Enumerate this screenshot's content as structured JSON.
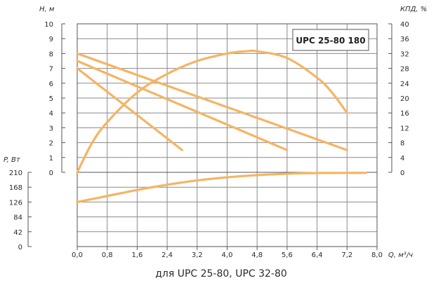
{
  "chart_data": {
    "type": "line",
    "title_box": "UPC 25-80 180",
    "caption": "для UPC 25-80, UPC 32-80",
    "colors": {
      "curve": "#f5b462",
      "grid": "#8a8a8a",
      "axis": "#555555"
    },
    "x_axis": {
      "label": "Q, м³/ч",
      "range": [
        0,
        8
      ],
      "ticks": [
        0,
        0.8,
        1.6,
        2.4,
        3.2,
        4.0,
        4.8,
        5.6,
        6.4,
        7.2,
        8.0
      ],
      "tick_labels": [
        "0,0",
        "0,8",
        "1,6",
        "2,4",
        "3,2",
        "4,0",
        "4,8",
        "5,6",
        "6,4",
        "7,2",
        "8,0"
      ]
    },
    "y_head": {
      "label": "H, м",
      "range": [
        0,
        10
      ],
      "ticks": [
        0,
        1,
        2,
        3,
        4,
        5,
        6,
        7,
        8,
        9,
        10
      ],
      "tick_labels": [
        "0",
        "1",
        "2",
        "3",
        "4",
        "5",
        "6",
        "7",
        "8",
        "9",
        "10"
      ]
    },
    "y_eff": {
      "label": "КПД, %",
      "range": [
        0,
        40
      ],
      "ticks": [
        0,
        4,
        8,
        12,
        16,
        20,
        24,
        28,
        32,
        36,
        40
      ],
      "tick_labels": [
        "0",
        "4",
        "8",
        "12",
        "16",
        "20",
        "24",
        "28",
        "32",
        "36",
        "40"
      ]
    },
    "y_power": {
      "label": "P, Вт",
      "range": [
        0,
        210
      ],
      "ticks": [
        0,
        42,
        84,
        126,
        168,
        210
      ],
      "tick_labels": [
        "0",
        "42",
        "84",
        "126",
        "168",
        "210"
      ]
    },
    "series": [
      {
        "axis": "head",
        "points": [
          [
            0,
            8.0
          ],
          [
            7.2,
            1.5
          ]
        ]
      },
      {
        "axis": "head",
        "points": [
          [
            0,
            7.5
          ],
          [
            5.6,
            1.5
          ]
        ]
      },
      {
        "axis": "head",
        "points": [
          [
            0,
            7.0
          ],
          [
            2.8,
            1.5
          ]
        ]
      },
      {
        "axis": "efficiency",
        "points": [
          [
            0,
            0
          ],
          [
            0.4,
            8
          ],
          [
            0.8,
            13.5
          ],
          [
            1.6,
            21.5
          ],
          [
            2.4,
            26.5
          ],
          [
            3.2,
            30
          ],
          [
            4.0,
            32
          ],
          [
            4.5,
            32.6
          ],
          [
            4.8,
            32.6
          ],
          [
            5.6,
            30.8
          ],
          [
            6.4,
            25.5
          ],
          [
            6.8,
            21.5
          ],
          [
            7.2,
            16
          ]
        ]
      },
      {
        "axis": "power",
        "points": [
          [
            0,
            126
          ],
          [
            0.8,
            143
          ],
          [
            1.6,
            160
          ],
          [
            2.4,
            175
          ],
          [
            3.2,
            187
          ],
          [
            4.0,
            196
          ],
          [
            4.8,
            202
          ],
          [
            5.6,
            206
          ],
          [
            6.4,
            208
          ],
          [
            7.2,
            208.5
          ],
          [
            7.7,
            208.5
          ]
        ]
      }
    ]
  }
}
